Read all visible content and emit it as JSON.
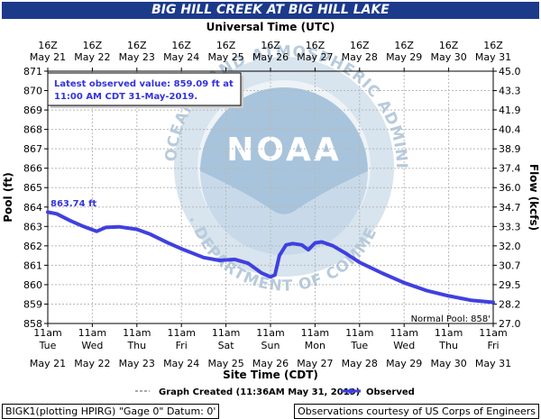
{
  "chart_data": {
    "type": "line",
    "title": "BIG HILL CREEK AT BIG HILL LAKE",
    "top_axis_title": "Universal Time (UTC)",
    "top_ticks": [
      {
        "l1": "16Z",
        "l2": "May 21"
      },
      {
        "l1": "16Z",
        "l2": "May 22"
      },
      {
        "l1": "16Z",
        "l2": "May 23"
      },
      {
        "l1": "16Z",
        "l2": "May 24"
      },
      {
        "l1": "16Z",
        "l2": "May 25"
      },
      {
        "l1": "16Z",
        "l2": "May 26"
      },
      {
        "l1": "16Z",
        "l2": "May 27"
      },
      {
        "l1": "16Z",
        "l2": "May 28"
      },
      {
        "l1": "16Z",
        "l2": "May 29"
      },
      {
        "l1": "16Z",
        "l2": "May 30"
      },
      {
        "l1": "16Z",
        "l2": "May 31"
      }
    ],
    "bottom_ticks": [
      {
        "l1": "11am",
        "l2": "Tue",
        "l3": "May 21"
      },
      {
        "l1": "11am",
        "l2": "Wed",
        "l3": "May 22"
      },
      {
        "l1": "11am",
        "l2": "Thu",
        "l3": "May 23"
      },
      {
        "l1": "11am",
        "l2": "Fri",
        "l3": "May 24"
      },
      {
        "l1": "11am",
        "l2": "Sat",
        "l3": "May 25"
      },
      {
        "l1": "11am",
        "l2": "Sun",
        "l3": "May 26"
      },
      {
        "l1": "11am",
        "l2": "Mon",
        "l3": "May 27"
      },
      {
        "l1": "11am",
        "l2": "Tue",
        "l3": "May 28"
      },
      {
        "l1": "11am",
        "l2": "Wed",
        "l3": "May 29"
      },
      {
        "l1": "11am",
        "l2": "Thu",
        "l3": "May 30"
      },
      {
        "l1": "11am",
        "l2": "Fri",
        "l3": "May 31"
      }
    ],
    "xlabel": "Site Time (CDT)",
    "ylabel": "Pool (ft)",
    "y2label": "Flow (kcfs)",
    "xlim": [
      0,
      10
    ],
    "ylim": [
      858,
      871
    ],
    "yticks": [
      858,
      859,
      860,
      861,
      862,
      863,
      864,
      865,
      866,
      867,
      868,
      869,
      870,
      871
    ],
    "y2ticks": [
      "27.0",
      "28.2",
      "29.5",
      "30.7",
      "32.0",
      "33.3",
      "34.7",
      "36.0",
      "37.4",
      "38.9",
      "40.4",
      "41.9",
      "43.3",
      "45.0"
    ],
    "grid": true,
    "series": [
      {
        "name": "Observed",
        "color": "#4040e0",
        "x": [
          0.0,
          0.2,
          0.5,
          0.8,
          1.1,
          1.3,
          1.6,
          2.0,
          2.3,
          2.7,
          3.0,
          3.5,
          3.85,
          4.2,
          4.5,
          4.8,
          5.0,
          5.1,
          5.2,
          5.35,
          5.5,
          5.7,
          5.85,
          6.0,
          6.15,
          6.4,
          6.7,
          7.0,
          7.5,
          8.0,
          8.5,
          9.0,
          9.5,
          10.0
        ],
        "y": [
          863.74,
          863.65,
          863.3,
          863.0,
          862.75,
          862.95,
          862.98,
          862.85,
          862.6,
          862.15,
          861.85,
          861.4,
          861.25,
          861.3,
          861.1,
          860.6,
          860.4,
          860.5,
          861.5,
          862.05,
          862.12,
          862.05,
          861.8,
          862.15,
          862.2,
          862.0,
          861.6,
          861.15,
          860.6,
          860.1,
          859.7,
          859.42,
          859.2,
          859.09
        ]
      }
    ],
    "annotations": {
      "latest_line1": "Latest observed value: 859.09 ft at",
      "latest_line2": "11:00 AM CDT 31-May-2019.",
      "start_value": "863.74 ft",
      "normal_pool": "Normal Pool: 858'"
    },
    "legend": {
      "created": "Graph Created (11:36AM May 31, 2019)",
      "observed": "Observed",
      "placement": "bottom"
    },
    "footer": {
      "left": "BIGK1(plotting HPIRG) \"Gage 0\" Datum: 0'",
      "right": "Observations courtesy of US Corps of Engineers"
    },
    "watermark": "NOAA seal"
  }
}
